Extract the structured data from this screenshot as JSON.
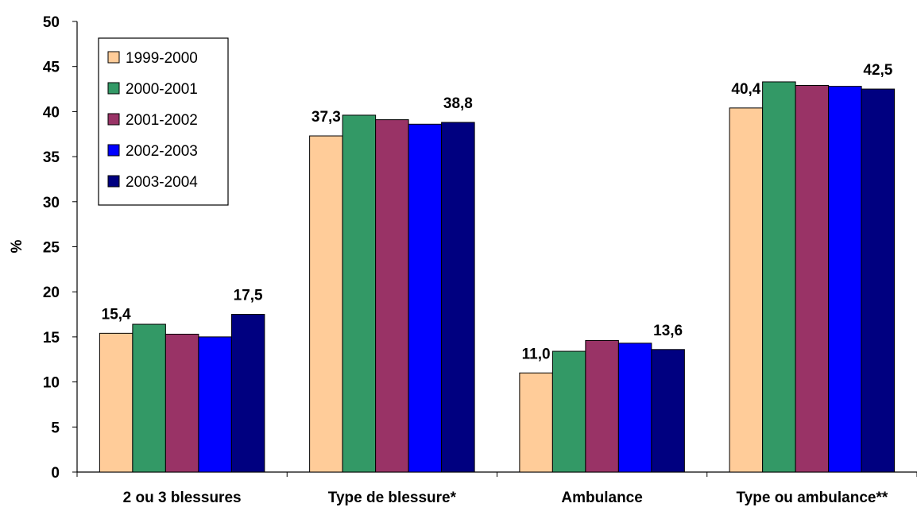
{
  "chart_data": {
    "type": "bar",
    "title": "",
    "xlabel": "",
    "ylabel": "%",
    "ylim": [
      0,
      50
    ],
    "yticks": [
      0,
      5,
      10,
      15,
      20,
      25,
      30,
      35,
      40,
      45,
      50
    ],
    "categories": [
      "2 ou 3 blessures",
      "Type de blessure*",
      "Ambulance",
      "Type ou ambulance**"
    ],
    "series": [
      {
        "name": "1999-2000",
        "color": "#FFCC99",
        "values": [
          15.4,
          37.3,
          11.0,
          40.4
        ]
      },
      {
        "name": "2000-2001",
        "color": "#339966",
        "values": [
          16.4,
          39.6,
          13.4,
          43.3
        ]
      },
      {
        "name": "2001-2002",
        "color": "#993366",
        "values": [
          15.3,
          39.1,
          14.6,
          42.9
        ]
      },
      {
        "name": "2002-2003",
        "color": "#0000FF",
        "values": [
          15.0,
          38.6,
          14.3,
          42.8
        ]
      },
      {
        "name": "2003-2004",
        "color": "#000080",
        "values": [
          17.5,
          38.8,
          13.6,
          42.5
        ]
      }
    ],
    "data_labels": [
      {
        "category": 0,
        "series": 0,
        "text": "15,4"
      },
      {
        "category": 0,
        "series": 4,
        "text": "17,5"
      },
      {
        "category": 1,
        "series": 0,
        "text": "37,3"
      },
      {
        "category": 1,
        "series": 4,
        "text": "38,8"
      },
      {
        "category": 2,
        "series": 0,
        "text": "11,0"
      },
      {
        "category": 2,
        "series": 4,
        "text": "13,6"
      },
      {
        "category": 3,
        "series": 0,
        "text": "40,4"
      },
      {
        "category": 3,
        "series": 4,
        "text": "42,5"
      }
    ],
    "legend": {
      "position": "top-left"
    },
    "grid": false
  }
}
